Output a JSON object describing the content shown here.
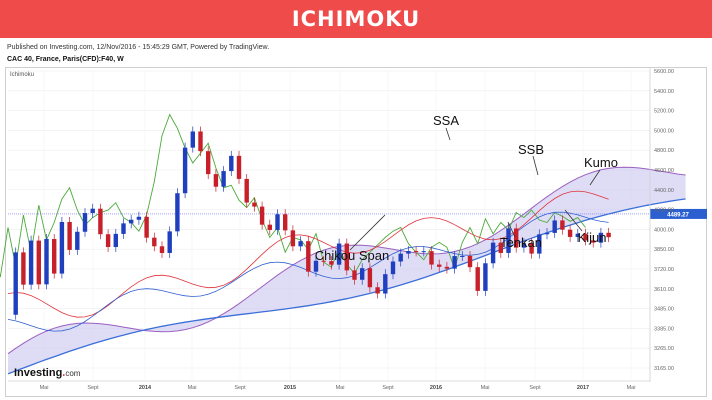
{
  "banner": {
    "title": "ICHIMOKU"
  },
  "header": {
    "published": "Published on Investing.com, 12/Nov/2016 - 15:45:29 GMT, Powered by TradingView.",
    "instrument": "CAC 40, France, Paris(CFD):F40, W"
  },
  "panel_label": "Ichimoku",
  "logo": {
    "main": "Investing",
    "dot": ".",
    "domain": "com"
  },
  "colors": {
    "banner": "#f04b4b",
    "up_candle": "#1f3fbf",
    "down_candle": "#c8202a",
    "tenkan": "#e0323a",
    "kijun": "#2f5fd0",
    "chikou": "#4caa3a",
    "ssa": "#9b5fc0",
    "ssb": "#3a6fd8",
    "cloud_bull": "#c9c6f0",
    "cloud_bear": "#f4c6cc",
    "price_line": "#6a6aff",
    "price_tag": "#2b5fd0"
  },
  "chart_data": {
    "type": "line",
    "title": "Ichimoku",
    "y_ticks": [
      "5600.00",
      "5400.00",
      "5200.00",
      "5000.00",
      "4800.00",
      "4600.00",
      "4400.00",
      "4200.00",
      "4000.00",
      "3850.00",
      "3720.00",
      "3610.00",
      "3485.00",
      "3385.00",
      "3265.00",
      "3165.00"
    ],
    "x_ticks": [
      {
        "label": "Mai",
        "bold": false
      },
      {
        "label": "Sept",
        "bold": false
      },
      {
        "label": "2014",
        "bold": true
      },
      {
        "label": "Mai",
        "bold": false
      },
      {
        "label": "Sept",
        "bold": false
      },
      {
        "label": "2015",
        "bold": true
      },
      {
        "label": "Mai",
        "bold": false
      },
      {
        "label": "Sept",
        "bold": false
      },
      {
        "label": "2016",
        "bold": true
      },
      {
        "label": "Mai",
        "bold": false
      },
      {
        "label": "Sept",
        "bold": false
      },
      {
        "label": "2017",
        "bold": true
      },
      {
        "label": "Mai",
        "bold": false
      }
    ],
    "ylim": [
      3150,
      5650
    ],
    "last_price": 4489.27,
    "last_price_label": "4489.27",
    "annotations": [
      "SSA",
      "SSB",
      "Kumo",
      "Chikou Span",
      "Tenkan",
      "Kijun"
    ],
    "series": [
      {
        "name": "Chikou Span",
        "values": [
          3790,
          4260,
          3980,
          4380,
          4070,
          4480,
          4180,
          4560,
          4280,
          4420,
          4610,
          4700,
          4520,
          4400,
          4460,
          4500,
          4520,
          4580,
          4460,
          4420,
          4350,
          4480,
          4750,
          5120,
          5290,
          5180,
          5020,
          4900,
          4980,
          5060,
          4860,
          4700,
          4720,
          4600,
          4540,
          4620,
          4440,
          4300,
          4380,
          4180,
          4300,
          4280,
          4200,
          4330,
          4100,
          4060,
          4210,
          4080,
          4010,
          4120,
          4180,
          4240,
          4300,
          4350,
          4380,
          4250,
          4180,
          4120,
          4220,
          4260,
          4220,
          4050,
          4260,
          4380,
          4250,
          4450,
          4330,
          4420,
          4360,
          4500,
          4460,
          4520,
          4440,
          4420,
          4500,
          4470,
          4430,
          4460,
          4380
        ]
      }
    ]
  }
}
